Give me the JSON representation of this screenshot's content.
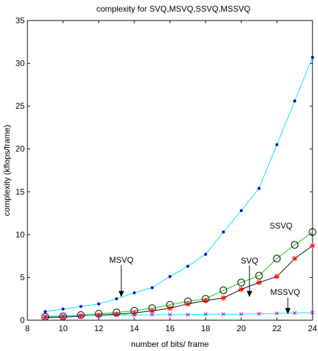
{
  "chart_data": {
    "type": "line",
    "title": "complexity for SVQ,MSVQ,SSVQ,MSSVQ",
    "xlabel": "number of bits/ frame",
    "ylabel": "complexity (kflops/frame)",
    "xlim": [
      8,
      24
    ],
    "ylim": [
      0,
      35
    ],
    "xticks": [
      8,
      10,
      12,
      14,
      16,
      18,
      20,
      22,
      24
    ],
    "yticks": [
      0,
      5,
      10,
      15,
      20,
      25,
      30,
      35
    ],
    "grid": false,
    "legend": "none",
    "x": [
      9,
      10,
      11,
      12,
      13,
      14,
      15,
      16,
      17,
      18,
      19,
      20,
      21,
      22,
      23,
      24
    ],
    "series": [
      {
        "key": "msvq",
        "color": "#00e5ee",
        "marker": "dot",
        "marker_color": "#0000ff",
        "values": [
          1.0,
          1.3,
          1.6,
          1.9,
          2.5,
          3.2,
          3.8,
          5.1,
          6.3,
          7.7,
          10.3,
          12.8,
          15.4,
          20.5,
          25.6,
          30.7
        ]
      },
      {
        "key": "ssvq",
        "color": "#00cc00",
        "marker": "circle",
        "marker_color": "#000000",
        "values": [
          0.4,
          0.45,
          0.6,
          0.75,
          0.9,
          1.1,
          1.4,
          1.8,
          2.2,
          2.5,
          3.5,
          4.4,
          5.2,
          7.2,
          8.8,
          10.3
        ]
      },
      {
        "key": "svq",
        "color": "#000000",
        "marker": "star",
        "marker_color": "#ff0000",
        "values": [
          0.3,
          0.35,
          0.5,
          0.6,
          0.7,
          0.85,
          1.1,
          1.4,
          1.9,
          2.3,
          2.6,
          3.6,
          4.4,
          5.1,
          7.2,
          8.7
        ]
      },
      {
        "key": "mssvq",
        "color": "#00e5ee",
        "marker": "x",
        "marker_color": "#cc00cc",
        "values": [
          0.45,
          0.5,
          0.55,
          0.55,
          0.6,
          0.6,
          0.65,
          0.65,
          0.65,
          0.7,
          0.7,
          0.7,
          0.75,
          0.8,
          0.85,
          0.9
        ]
      }
    ],
    "annotations": [
      {
        "text": "MSVQ",
        "arrow_to": [
          13.3,
          2.7
        ]
      },
      {
        "text": "SVQ",
        "arrow_to": [
          19.3,
          2.7
        ]
      },
      {
        "text": "SSVQ",
        "arrow_to": null
      },
      {
        "text": "MSSVQ",
        "arrow_to": [
          22.6,
          0.7
        ]
      }
    ]
  }
}
